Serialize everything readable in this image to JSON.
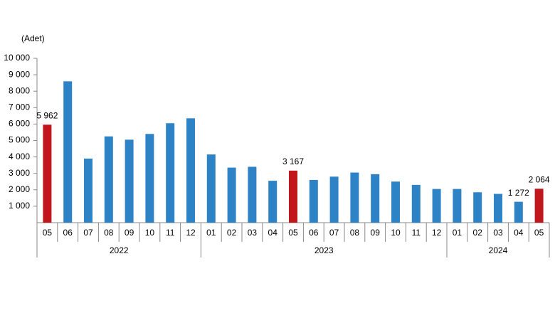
{
  "chart_data": {
    "type": "bar",
    "y_label": "(Adet)",
    "groups": [
      {
        "name": "2022",
        "categories": [
          "05",
          "06",
          "07",
          "08",
          "09",
          "10",
          "11",
          "12"
        ]
      },
      {
        "name": "2023",
        "categories": [
          "01",
          "02",
          "03",
          "04",
          "05",
          "06",
          "07",
          "08",
          "09",
          "10",
          "11",
          "12"
        ]
      },
      {
        "name": "2024",
        "categories": [
          "01",
          "02",
          "03",
          "04",
          "05"
        ]
      }
    ],
    "values": [
      5962,
      8600,
      3900,
      5250,
      5050,
      5400,
      6050,
      6350,
      4150,
      3350,
      3400,
      2550,
      3167,
      2600,
      2800,
      3050,
      2950,
      2500,
      2300,
      2050,
      2050,
      1850,
      1750,
      1272,
      2064
    ],
    "value_labels": [
      "5 962",
      null,
      null,
      null,
      null,
      null,
      null,
      null,
      null,
      null,
      null,
      null,
      "3 167",
      null,
      null,
      null,
      null,
      null,
      null,
      null,
      null,
      null,
      null,
      "1 272",
      "2 064"
    ],
    "colors": [
      "#c0161c",
      "#2e83c6",
      "#2e83c6",
      "#2e83c6",
      "#2e83c6",
      "#2e83c6",
      "#2e83c6",
      "#2e83c6",
      "#2e83c6",
      "#2e83c6",
      "#2e83c6",
      "#2e83c6",
      "#c0161c",
      "#2e83c6",
      "#2e83c6",
      "#2e83c6",
      "#2e83c6",
      "#2e83c6",
      "#2e83c6",
      "#2e83c6",
      "#2e83c6",
      "#2e83c6",
      "#2e83c6",
      "#2e83c6",
      "#c0161c"
    ],
    "ylim": [
      0,
      10000
    ],
    "yticks": [
      {
        "value": 1000,
        "label": "1 000"
      },
      {
        "value": 2000,
        "label": "2 000"
      },
      {
        "value": 3000,
        "label": "3 000"
      },
      {
        "value": 4000,
        "label": "4 000"
      },
      {
        "value": 5000,
        "label": "5 000"
      },
      {
        "value": 6000,
        "label": "6 000"
      },
      {
        "value": 7000,
        "label": "7 000"
      },
      {
        "value": 8000,
        "label": "8 000"
      },
      {
        "value": 9000,
        "label": "9 000"
      },
      {
        "value": 10000,
        "label": "10 000"
      }
    ],
    "grid": false
  }
}
